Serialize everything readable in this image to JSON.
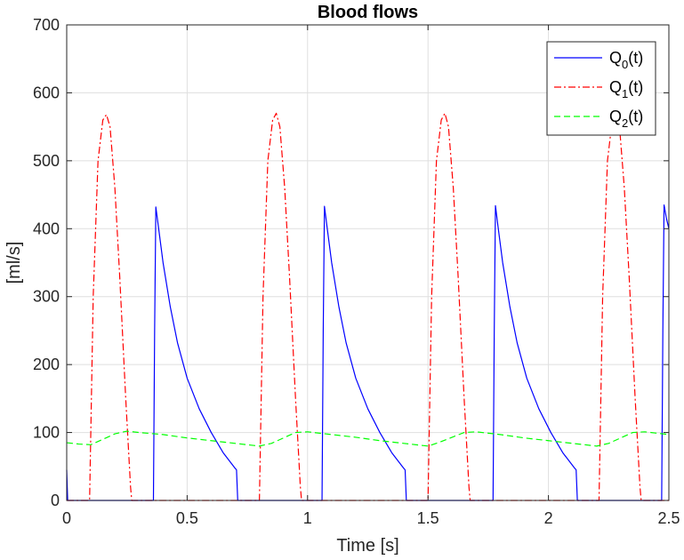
{
  "chart_data": {
    "type": "line",
    "title": "Blood flows",
    "xlabel": "Time [s]",
    "ylabel": "[ml/s]",
    "xlim": [
      0,
      2.5
    ],
    "ylim": [
      0,
      700
    ],
    "xticks": [
      0,
      0.5,
      1,
      1.5,
      2,
      2.5
    ],
    "xtick_labels": [
      "0",
      "0.5",
      "1",
      "1.5",
      "2",
      "2.5"
    ],
    "yticks": [
      0,
      100,
      200,
      300,
      400,
      500,
      600,
      700
    ],
    "ytick_labels": [
      "0",
      "100",
      "200",
      "300",
      "400",
      "500",
      "600",
      "700"
    ],
    "grid": true,
    "legend": "top-right",
    "series": [
      {
        "name": "Q",
        "name_sub": "0",
        "name_suffix": "(t)",
        "color": "#0000ff",
        "dash": "solid",
        "x": [
          0,
          0.004,
          0.02,
          0.36,
          0.365,
          0.37,
          0.38,
          0.4,
          0.43,
          0.46,
          0.5,
          0.55,
          0.6,
          0.65,
          0.7,
          0.705,
          0.71,
          1.06,
          1.065,
          1.07,
          1.08,
          1.1,
          1.13,
          1.16,
          1.2,
          1.25,
          1.3,
          1.35,
          1.4,
          1.405,
          1.41,
          1.77,
          1.775,
          1.78,
          1.79,
          1.81,
          1.84,
          1.87,
          1.91,
          1.96,
          2.01,
          2.06,
          2.11,
          2.115,
          2.12,
          2.47,
          2.475,
          2.48,
          2.49,
          2.5
        ],
        "y": [
          45,
          0,
          0,
          0,
          250,
          432,
          405,
          350,
          285,
          232,
          180,
          135,
          100,
          70,
          47,
          45,
          0,
          0,
          250,
          433,
          405,
          350,
          285,
          232,
          180,
          135,
          100,
          70,
          47,
          45,
          0,
          0,
          250,
          434,
          405,
          350,
          285,
          232,
          180,
          135,
          100,
          70,
          47,
          45,
          0,
          0,
          250,
          435,
          415,
          400
        ]
      },
      {
        "name": "Q",
        "name_sub": "1",
        "name_suffix": "(t)",
        "color": "#ff0000",
        "dash": "dashdot",
        "x": [
          0,
          0.095,
          0.11,
          0.13,
          0.15,
          0.165,
          0.18,
          0.2,
          0.22,
          0.245,
          0.265,
          0.27,
          0.8,
          0.815,
          0.835,
          0.855,
          0.87,
          0.885,
          0.905,
          0.925,
          0.95,
          0.97,
          0.975,
          1.5,
          1.515,
          1.535,
          1.555,
          1.57,
          1.585,
          1.605,
          1.625,
          1.65,
          1.67,
          1.675,
          2.21,
          2.225,
          2.245,
          2.265,
          2.28,
          2.295,
          2.315,
          2.335,
          2.36,
          2.38,
          2.385,
          2.5
        ],
        "y": [
          0,
          0,
          300,
          500,
          560,
          568,
          550,
          460,
          330,
          150,
          20,
          0,
          0,
          300,
          500,
          560,
          570,
          550,
          460,
          330,
          150,
          20,
          0,
          0,
          300,
          500,
          560,
          570,
          550,
          460,
          330,
          150,
          20,
          0,
          0,
          300,
          500,
          560,
          570,
          550,
          460,
          330,
          150,
          20,
          0,
          0
        ]
      },
      {
        "name": "Q",
        "name_sub": "2",
        "name_suffix": "(t)",
        "color": "#00ff00",
        "dash": "dashed",
        "x": [
          0,
          0.05,
          0.1,
          0.15,
          0.2,
          0.25,
          0.3,
          0.4,
          0.5,
          0.6,
          0.7,
          0.8,
          0.85,
          0.9,
          0.95,
          1.0,
          1.1,
          1.2,
          1.3,
          1.4,
          1.5,
          1.55,
          1.6,
          1.65,
          1.7,
          1.8,
          1.9,
          2.0,
          2.1,
          2.2,
          2.25,
          2.3,
          2.35,
          2.4,
          2.45,
          2.5
        ],
        "y": [
          85,
          83,
          82,
          90,
          98,
          102,
          100,
          97,
          92,
          88,
          84,
          80,
          84,
          92,
          100,
          101,
          97,
          93,
          88,
          84,
          80,
          86,
          93,
          100,
          101,
          97,
          92,
          88,
          84,
          80,
          84,
          92,
          100,
          101,
          99,
          97
        ]
      }
    ]
  }
}
